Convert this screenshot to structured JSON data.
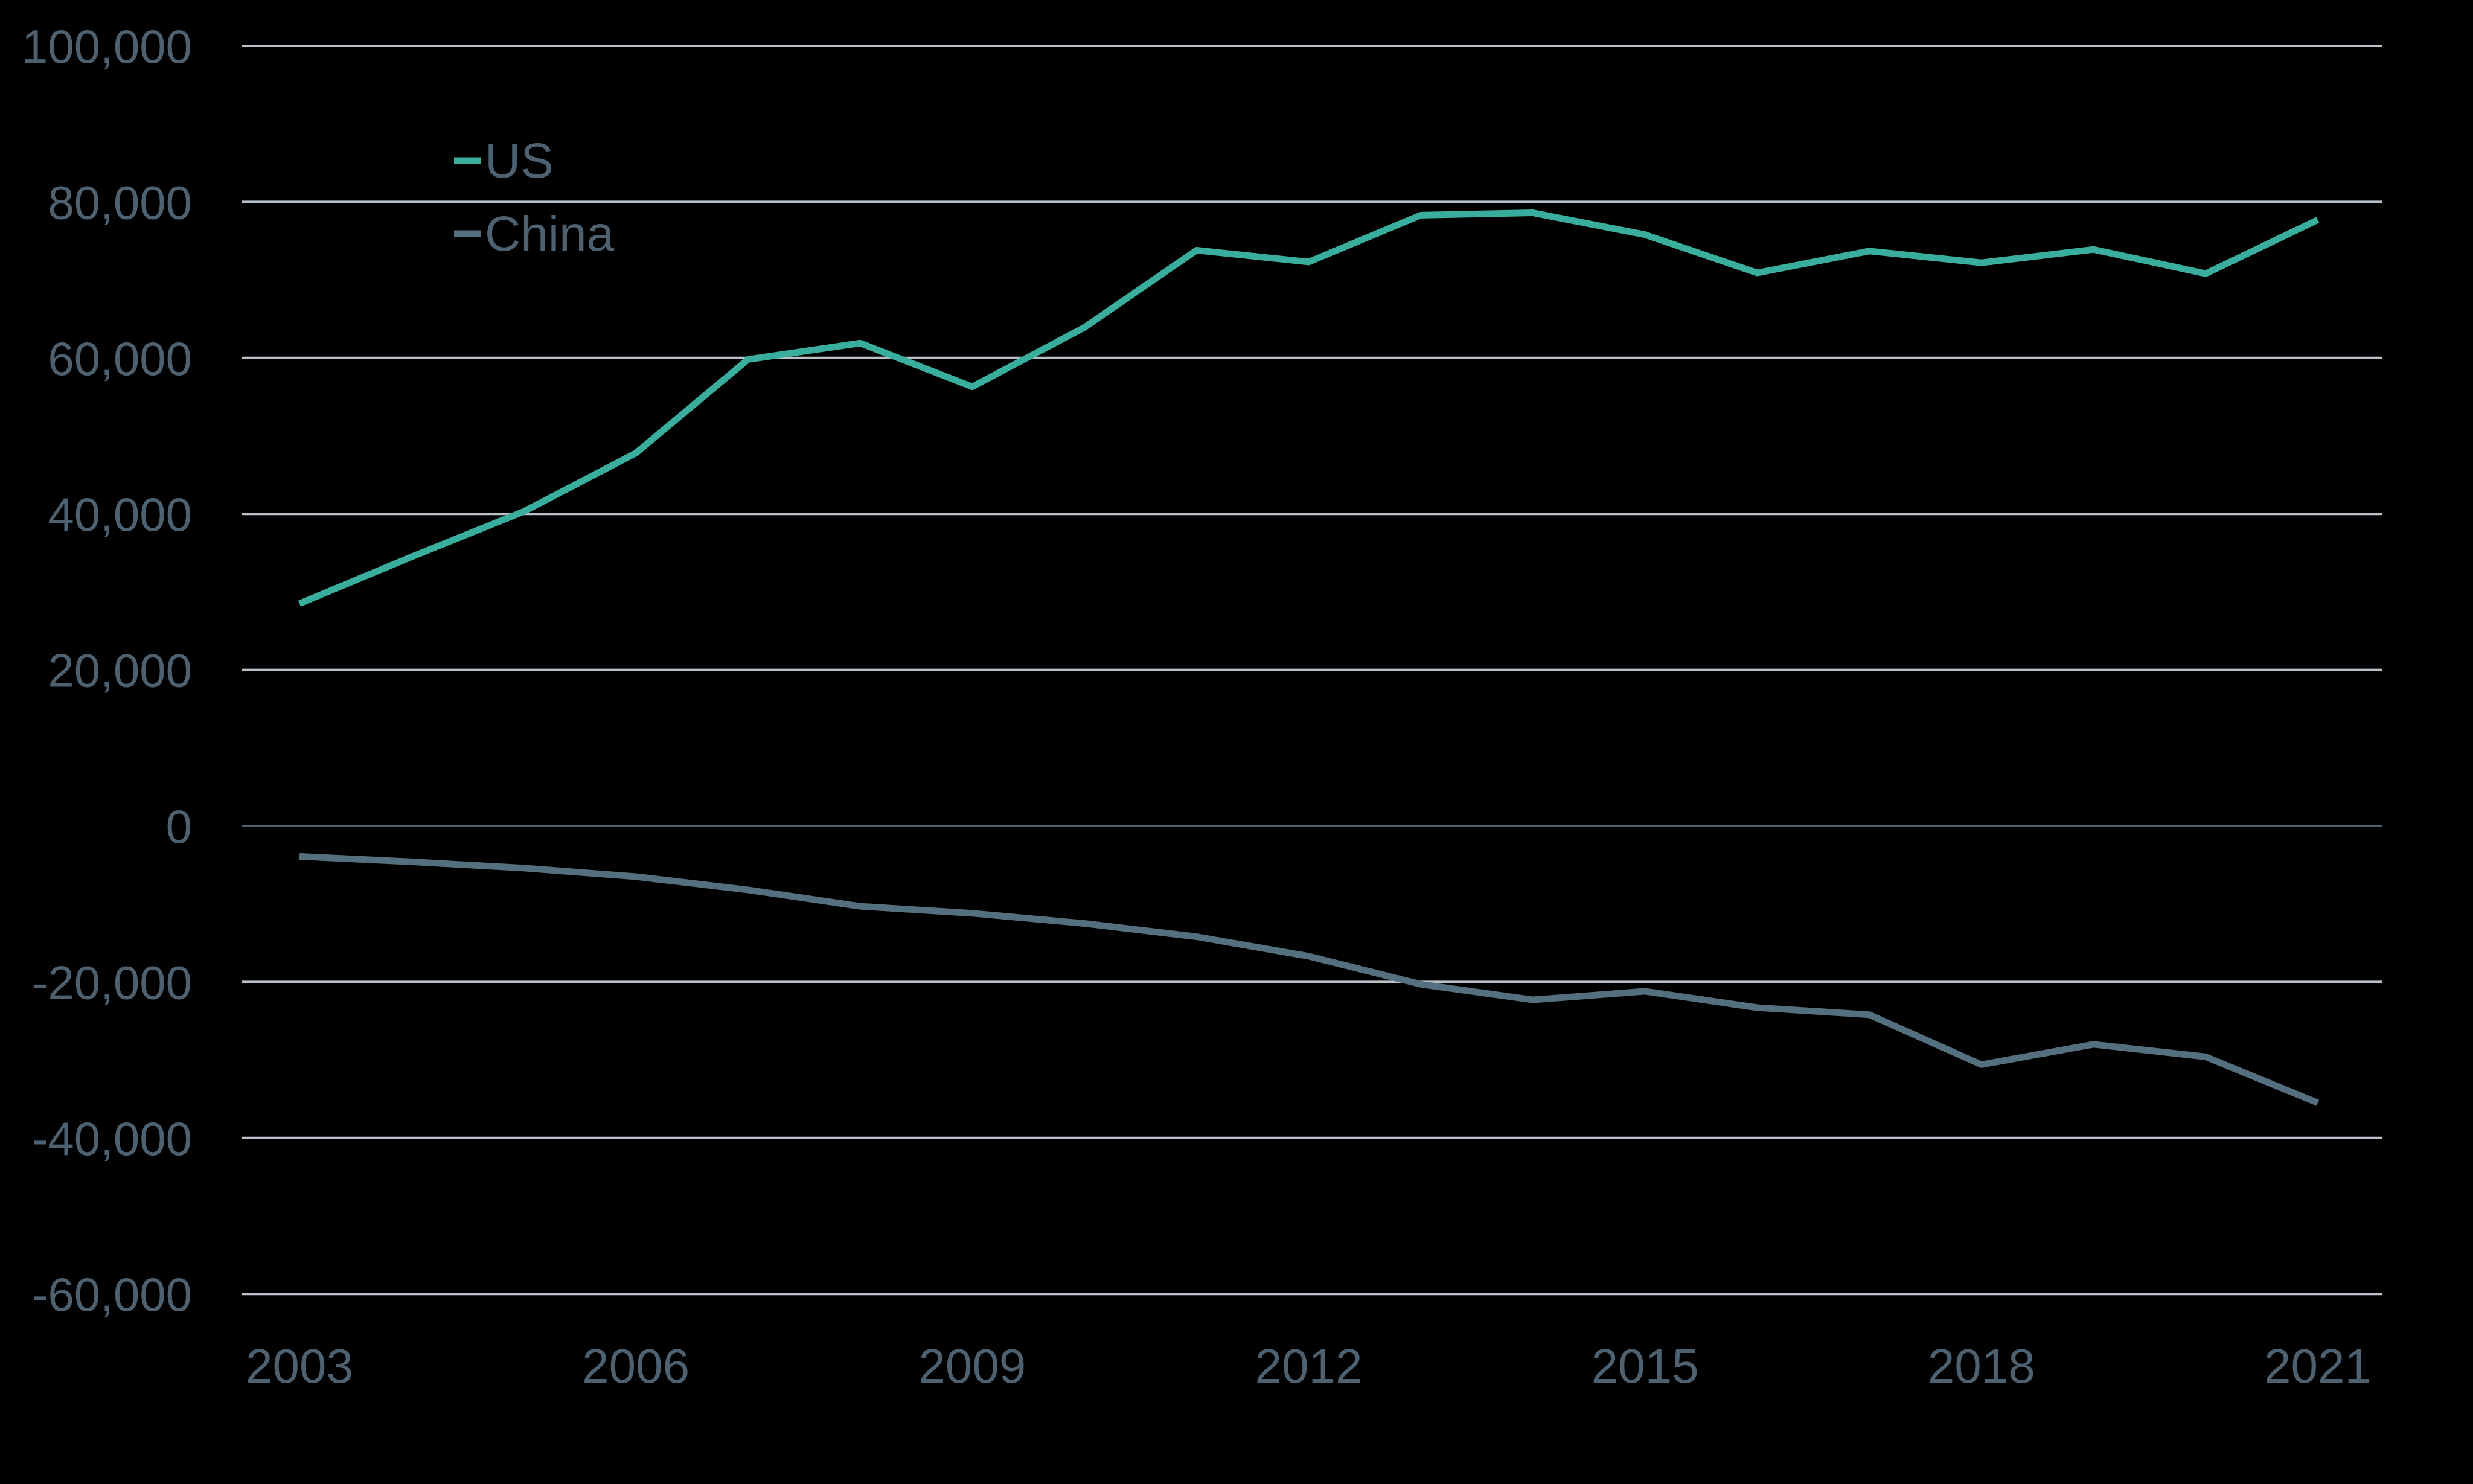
{
  "chart_data": {
    "type": "line",
    "title": "",
    "x": [
      2003,
      2004,
      2005,
      2006,
      2007,
      2008,
      2009,
      2010,
      2011,
      2012,
      2013,
      2014,
      2015,
      2016,
      2017,
      2018,
      2019,
      2020,
      2021
    ],
    "series": [
      {
        "name": "US",
        "color": "#3aae9d",
        "values": [
          28500,
          34500,
          40300,
          47800,
          59800,
          61900,
          56300,
          63900,
          73800,
          72300,
          78300,
          78600,
          75800,
          70900,
          73700,
          72200,
          73900,
          70800,
          77700
        ]
      },
      {
        "name": "China",
        "color": "#54707e",
        "values": [
          -3900,
          -4600,
          -5400,
          -6500,
          -8200,
          -10300,
          -11200,
          -12500,
          -14200,
          -16700,
          -20300,
          -22300,
          -21200,
          -23300,
          -24200,
          -30600,
          -28000,
          -29600,
          -35500
        ]
      }
    ],
    "ylim": [
      -60000,
      100000
    ],
    "ytick_values": [
      100000,
      80000,
      60000,
      40000,
      20000,
      0,
      -20000,
      -40000,
      -60000
    ],
    "ytick_labels": [
      "100,000",
      "80,000",
      "60,000",
      "40,000",
      "20,000",
      "0",
      "-20,000",
      "-40,000",
      "-60,000"
    ],
    "xtick_years": [
      2003,
      2006,
      2009,
      2012,
      2015,
      2018,
      2021
    ],
    "xtick_labels": [
      "2003",
      "2006",
      "2009",
      "2012",
      "2015",
      "2018",
      "2021"
    ],
    "grid": "horizontal-only",
    "legend_position": "inside-top-left",
    "background_color": "#000000",
    "gridline_color": "#b9c0c7",
    "zero_line_color": "#4e616d",
    "label_color": "#4d6170"
  },
  "legend": {
    "items": [
      {
        "label": "US"
      },
      {
        "label": "China"
      }
    ]
  }
}
